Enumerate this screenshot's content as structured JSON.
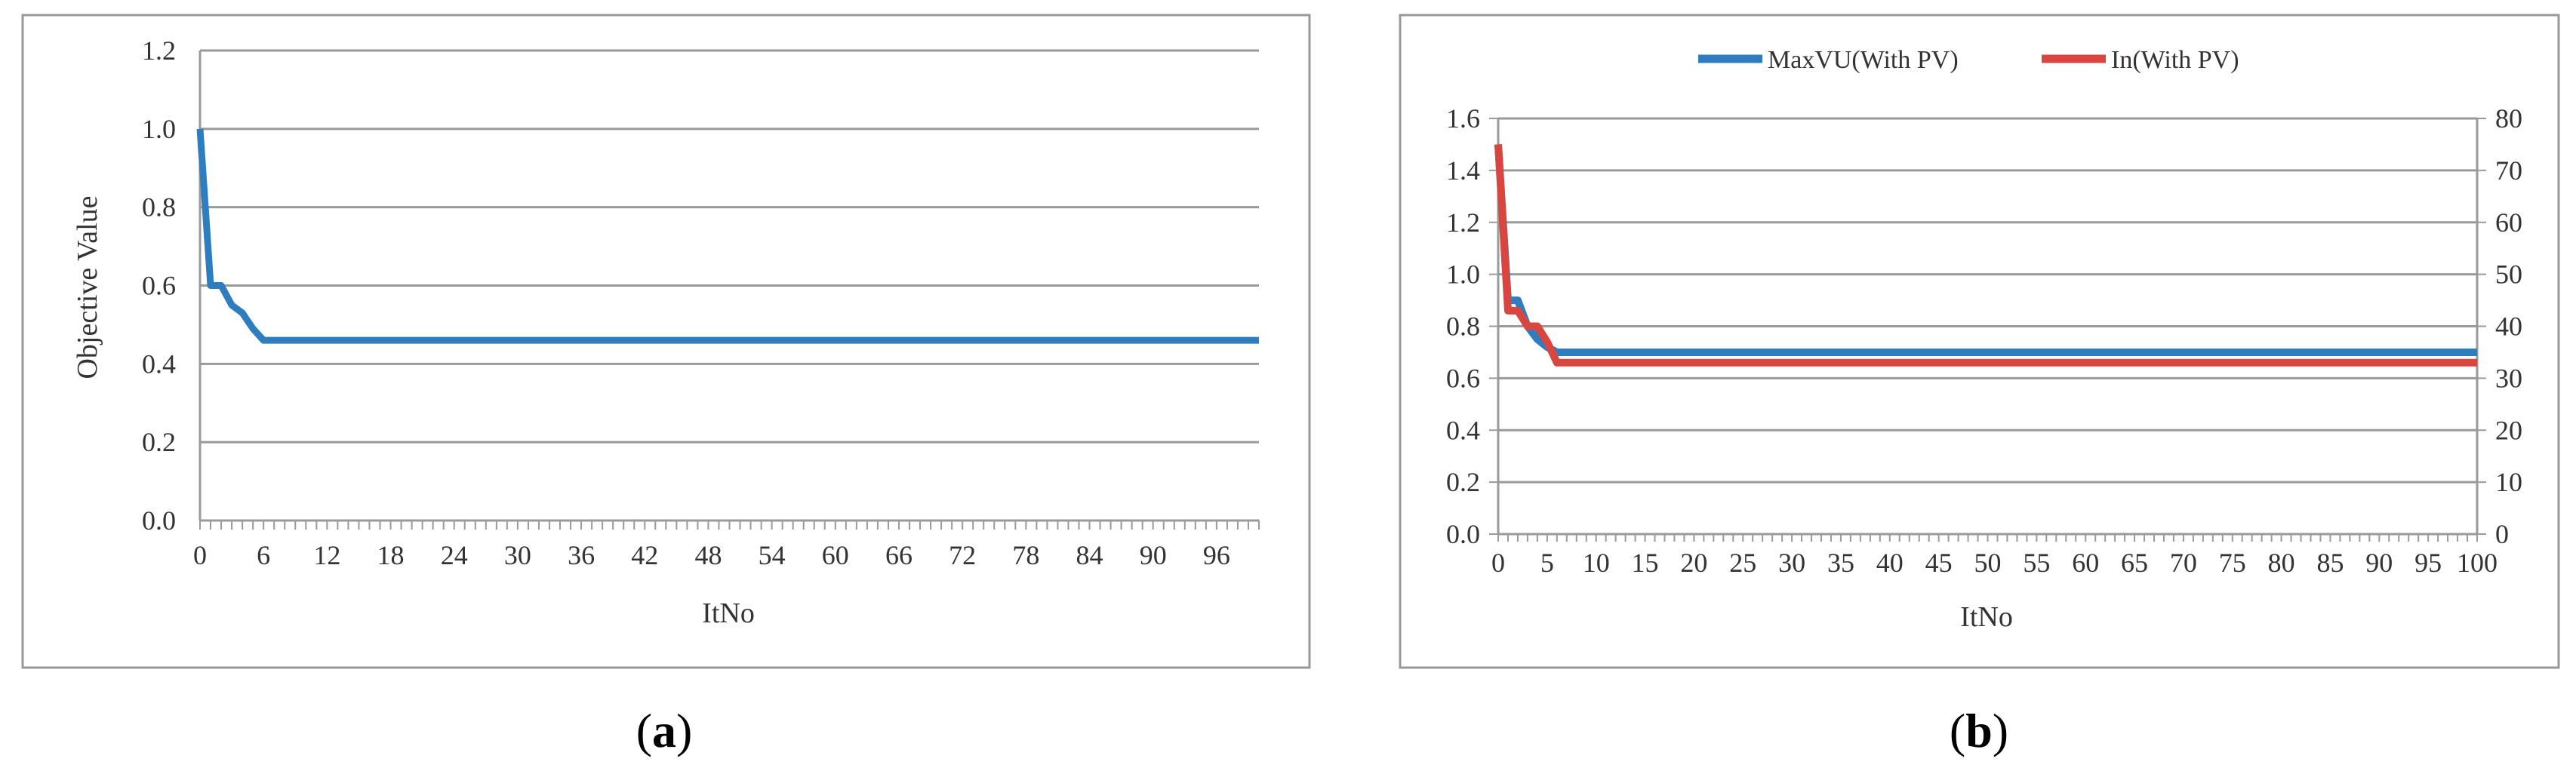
{
  "chart_data": [
    {
      "type": "line",
      "xlabel": "ItNo",
      "ylabel": "Objective Value",
      "ylim": [
        0,
        1.2
      ],
      "xlim": [
        0,
        100
      ],
      "x_ticks": [
        0,
        6,
        12,
        18,
        24,
        30,
        36,
        42,
        48,
        54,
        60,
        66,
        72,
        78,
        84,
        90,
        96
      ],
      "y_ticks": [
        "0.0",
        "0.2",
        "0.4",
        "0.6",
        "0.8",
        "1.0",
        "1.2"
      ],
      "grid": "horizontal",
      "series": [
        {
          "color": "#2e7dbf",
          "points": [
            [
              0,
              1.0
            ],
            [
              1,
              0.6
            ],
            [
              2,
              0.6
            ],
            [
              3,
              0.55
            ],
            [
              4,
              0.53
            ],
            [
              5,
              0.49
            ],
            [
              6,
              0.46
            ],
            [
              100,
              0.46
            ]
          ]
        }
      ]
    },
    {
      "type": "line",
      "xlabel": "ItNo",
      "ylim_left": [
        0,
        1.6
      ],
      "ylim_right": [
        0,
        80
      ],
      "xlim": [
        0,
        100
      ],
      "x_ticks": [
        0,
        5,
        10,
        15,
        20,
        25,
        30,
        35,
        40,
        45,
        50,
        55,
        60,
        65,
        70,
        75,
        80,
        85,
        90,
        95,
        100
      ],
      "y_ticks_left": [
        "0.0",
        "0.2",
        "0.4",
        "0.6",
        "0.8",
        "1.0",
        "1.2",
        "1.4",
        "1.6"
      ],
      "y_ticks_right": [
        "0",
        "10",
        "20",
        "30",
        "40",
        "50",
        "60",
        "70",
        "80"
      ],
      "grid": "horizontal",
      "legend_position": "top",
      "series": [
        {
          "name": "MaxVU(With PV)",
          "color": "#2e7dbf",
          "axis": "left",
          "points": [
            [
              0,
              1.5
            ],
            [
              1,
              0.9
            ],
            [
              2,
              0.9
            ],
            [
              3,
              0.8
            ],
            [
              4,
              0.75
            ],
            [
              5,
              0.72
            ],
            [
              6,
              0.7
            ],
            [
              100,
              0.7
            ]
          ]
        },
        {
          "name": "In(With PV)",
          "color": "#d9463f",
          "axis": "right",
          "points": [
            [
              0,
              75
            ],
            [
              1,
              43
            ],
            [
              2,
              43
            ],
            [
              3,
              40
            ],
            [
              4,
              40
            ],
            [
              5,
              37
            ],
            [
              6,
              33
            ],
            [
              100,
              33
            ]
          ]
        }
      ]
    }
  ],
  "captions": [
    {
      "open": "(",
      "letter": "a",
      "close": ")"
    },
    {
      "open": "(",
      "letter": "b",
      "close": ")"
    }
  ]
}
